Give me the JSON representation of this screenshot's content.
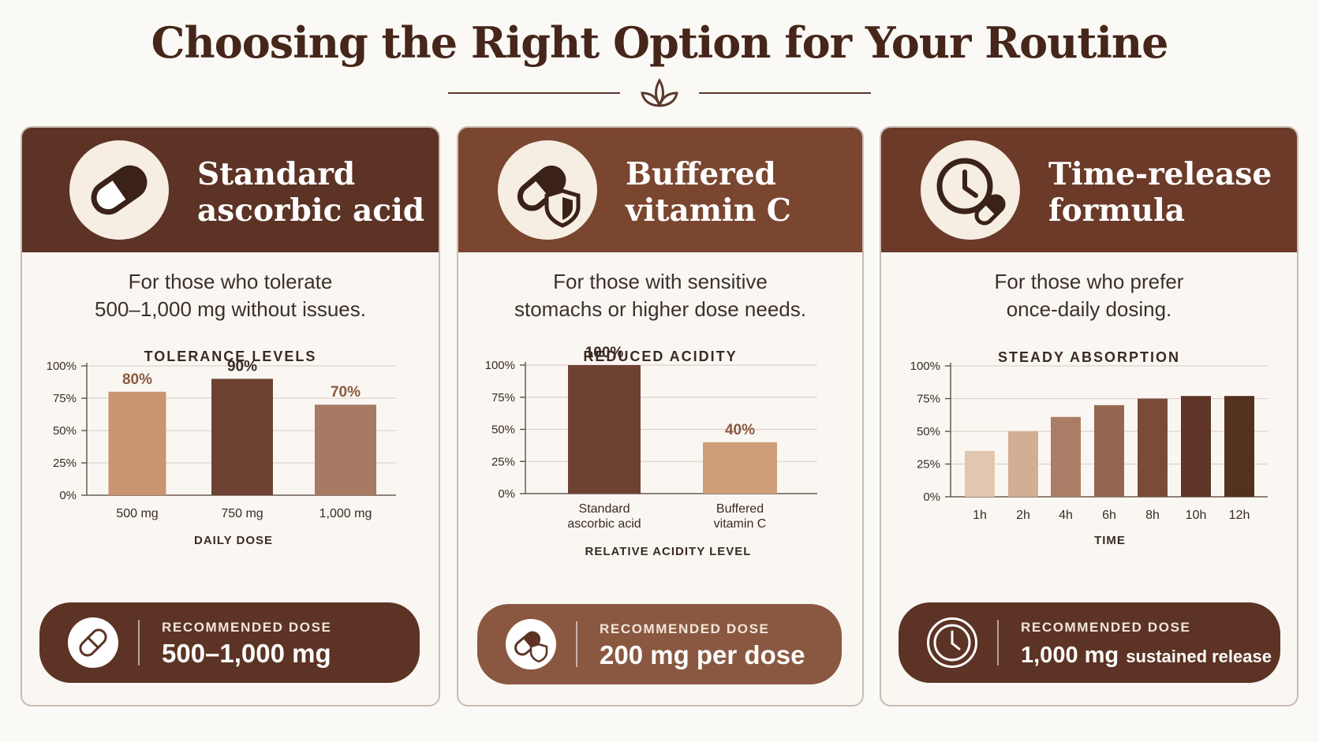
{
  "page": {
    "title": "Choosing the Right Option for Your Routine",
    "accent_color": "#5a3a2c",
    "leaf_icon": "leaf-sprout-icon"
  },
  "cards": [
    {
      "id": "standard",
      "title_lines": [
        "Standard",
        "ascorbic acid"
      ],
      "header_color": "#5c3324",
      "icon": "pill-capsule-icon",
      "description_lines": [
        "For those who tolerate",
        "500–1,000 mg without issues."
      ],
      "dose_label": "RECOMMENDED DOSE",
      "dose_value": "500–1,000 mg",
      "dose_value_suffix": "",
      "pill_color": "#5c3324",
      "pill_icon": "capsule-icon"
    },
    {
      "id": "buffered",
      "title_lines": [
        "Buffered",
        "vitamin C"
      ],
      "header_color": "#7a4630",
      "icon": "capsule-shield-icon",
      "description_lines": [
        "For those with sensitive",
        "stomachs or higher dose needs."
      ],
      "dose_label": "RECOMMENDED DOSE",
      "dose_value": "200 mg per dose",
      "dose_value_suffix": "",
      "pill_color": "#8a5840",
      "pill_icon": "capsule-shield-icon"
    },
    {
      "id": "timerelease",
      "title_lines": [
        "Time-release",
        "formula"
      ],
      "header_color": "#6b3a28",
      "icon": "clock-capsule-icon",
      "description_lines": [
        "For those who prefer",
        "once-daily dosing."
      ],
      "dose_label": "RECOMMENDED DOSE",
      "dose_value": "1,000 mg",
      "dose_value_suffix": "sustained release",
      "pill_color": "#5c3324",
      "pill_icon": "clock-icon"
    }
  ],
  "chart_data": [
    {
      "type": "bar",
      "title": "TOLERANCE LEVELS",
      "xlabel": "DAILY DOSE",
      "ylabel": "",
      "categories": [
        "500 mg",
        "750 mg",
        "1,000 mg"
      ],
      "values": [
        80,
        90,
        70
      ],
      "data_labels": [
        "80%",
        "90%",
        "70%"
      ],
      "colors": [
        "#c9946f",
        "#6e4233",
        "#a67a63"
      ],
      "label_colors": [
        "#8a5a3e",
        "#3a2a22",
        "#8a5a3e"
      ],
      "yticks": [
        "0%",
        "25%",
        "50%",
        "75%",
        "100%"
      ],
      "ylim": [
        0,
        100
      ],
      "grid": true,
      "legend": "none"
    },
    {
      "type": "bar",
      "title": "REDUCED ACIDITY",
      "xlabel": "RELATIVE ACIDITY LEVEL",
      "ylabel": "",
      "categories": [
        [
          "Standard",
          "ascorbic acid"
        ],
        [
          "Buffered",
          "vitamin C"
        ]
      ],
      "values": [
        100,
        40
      ],
      "data_labels": [
        "100%",
        "40%"
      ],
      "colors": [
        "#6e4233",
        "#cf9e78"
      ],
      "label_colors": [
        "#3a2a22",
        "#8a5a3e"
      ],
      "yticks": [
        "0%",
        "25%",
        "50%",
        "75%",
        "100%"
      ],
      "ylim": [
        0,
        100
      ],
      "grid": true,
      "legend": "none"
    },
    {
      "type": "bar",
      "title": "STEADY ABSORPTION",
      "xlabel": "TIME",
      "ylabel": "",
      "categories": [
        "1h",
        "2h",
        "4h",
        "6h",
        "8h",
        "10h",
        "12h"
      ],
      "values": [
        35,
        50,
        61,
        70,
        75,
        77,
        77
      ],
      "data_labels": [],
      "colors": [
        "#e2c7b0",
        "#d2ae95",
        "#a97d66",
        "#946651",
        "#7a4b39",
        "#5e3526",
        "#54301f"
      ],
      "label_colors": [],
      "yticks": [
        "0%",
        "25%",
        "50%",
        "75%",
        "100%"
      ],
      "ylim": [
        0,
        100
      ],
      "grid": true,
      "legend": "none"
    }
  ]
}
